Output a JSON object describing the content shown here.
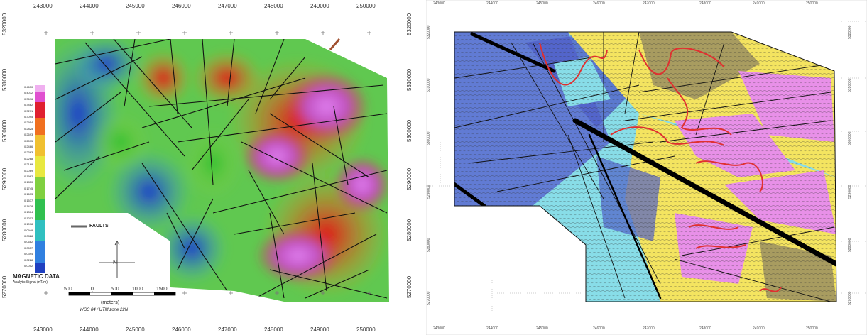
{
  "left_map": {
    "x_ticks": [
      "243000",
      "244000",
      "245000",
      "246000",
      "247000",
      "248000",
      "249000",
      "250000"
    ],
    "y_ticks": [
      "5320000",
      "5310000",
      "5300000",
      "5290000",
      "5280000",
      "5270000"
    ],
    "legend_title": "MAGNETIC DATA",
    "legend_subtitle": "Analytic Signal (nT/m)",
    "legend_values": [
      "0.4630",
      "0.4032",
      "0.3696",
      "0.3462",
      "0.3271",
      "0.3095",
      "0.2954",
      "0.2825",
      "0.2693",
      "0.2575",
      "0.2466",
      "0.2363",
      "0.2268",
      "0.2169",
      "0.2069",
      "0.1962",
      "0.1850",
      "0.1745",
      "0.1633",
      "0.1537",
      "0.1428",
      "0.1314",
      "0.1202",
      "0.1078",
      "0.0949",
      "0.0828",
      "0.0682",
      "0.0557",
      "0.0394",
      "0.0228",
      "0.0052"
    ],
    "faults_label": "FAULTS",
    "north_label": "N",
    "scale_labels": [
      "500",
      "0",
      "500",
      "1000",
      "1500"
    ],
    "scale_unit": "(meters)",
    "projection": "WGS 84 / UTM zone 22N",
    "colors": {
      "low": "#2050d0",
      "mid": "#40c040",
      "high": "#e02020",
      "peak": "#e070e0"
    }
  },
  "right_map": {
    "x_ticks": [
      "243000",
      "244000",
      "245000",
      "246000",
      "247000",
      "248000",
      "249000",
      "250000"
    ],
    "y_ticks": [
      "5320000",
      "5310000",
      "5300000",
      "5290000",
      "5280000",
      "5270000"
    ],
    "colors": {
      "cyan": "#88dde8",
      "blue": "#5060c8",
      "yellow": "#f4e460",
      "olive": "#a89c60",
      "pink": "#e890e8",
      "red": "#e03030"
    }
  }
}
